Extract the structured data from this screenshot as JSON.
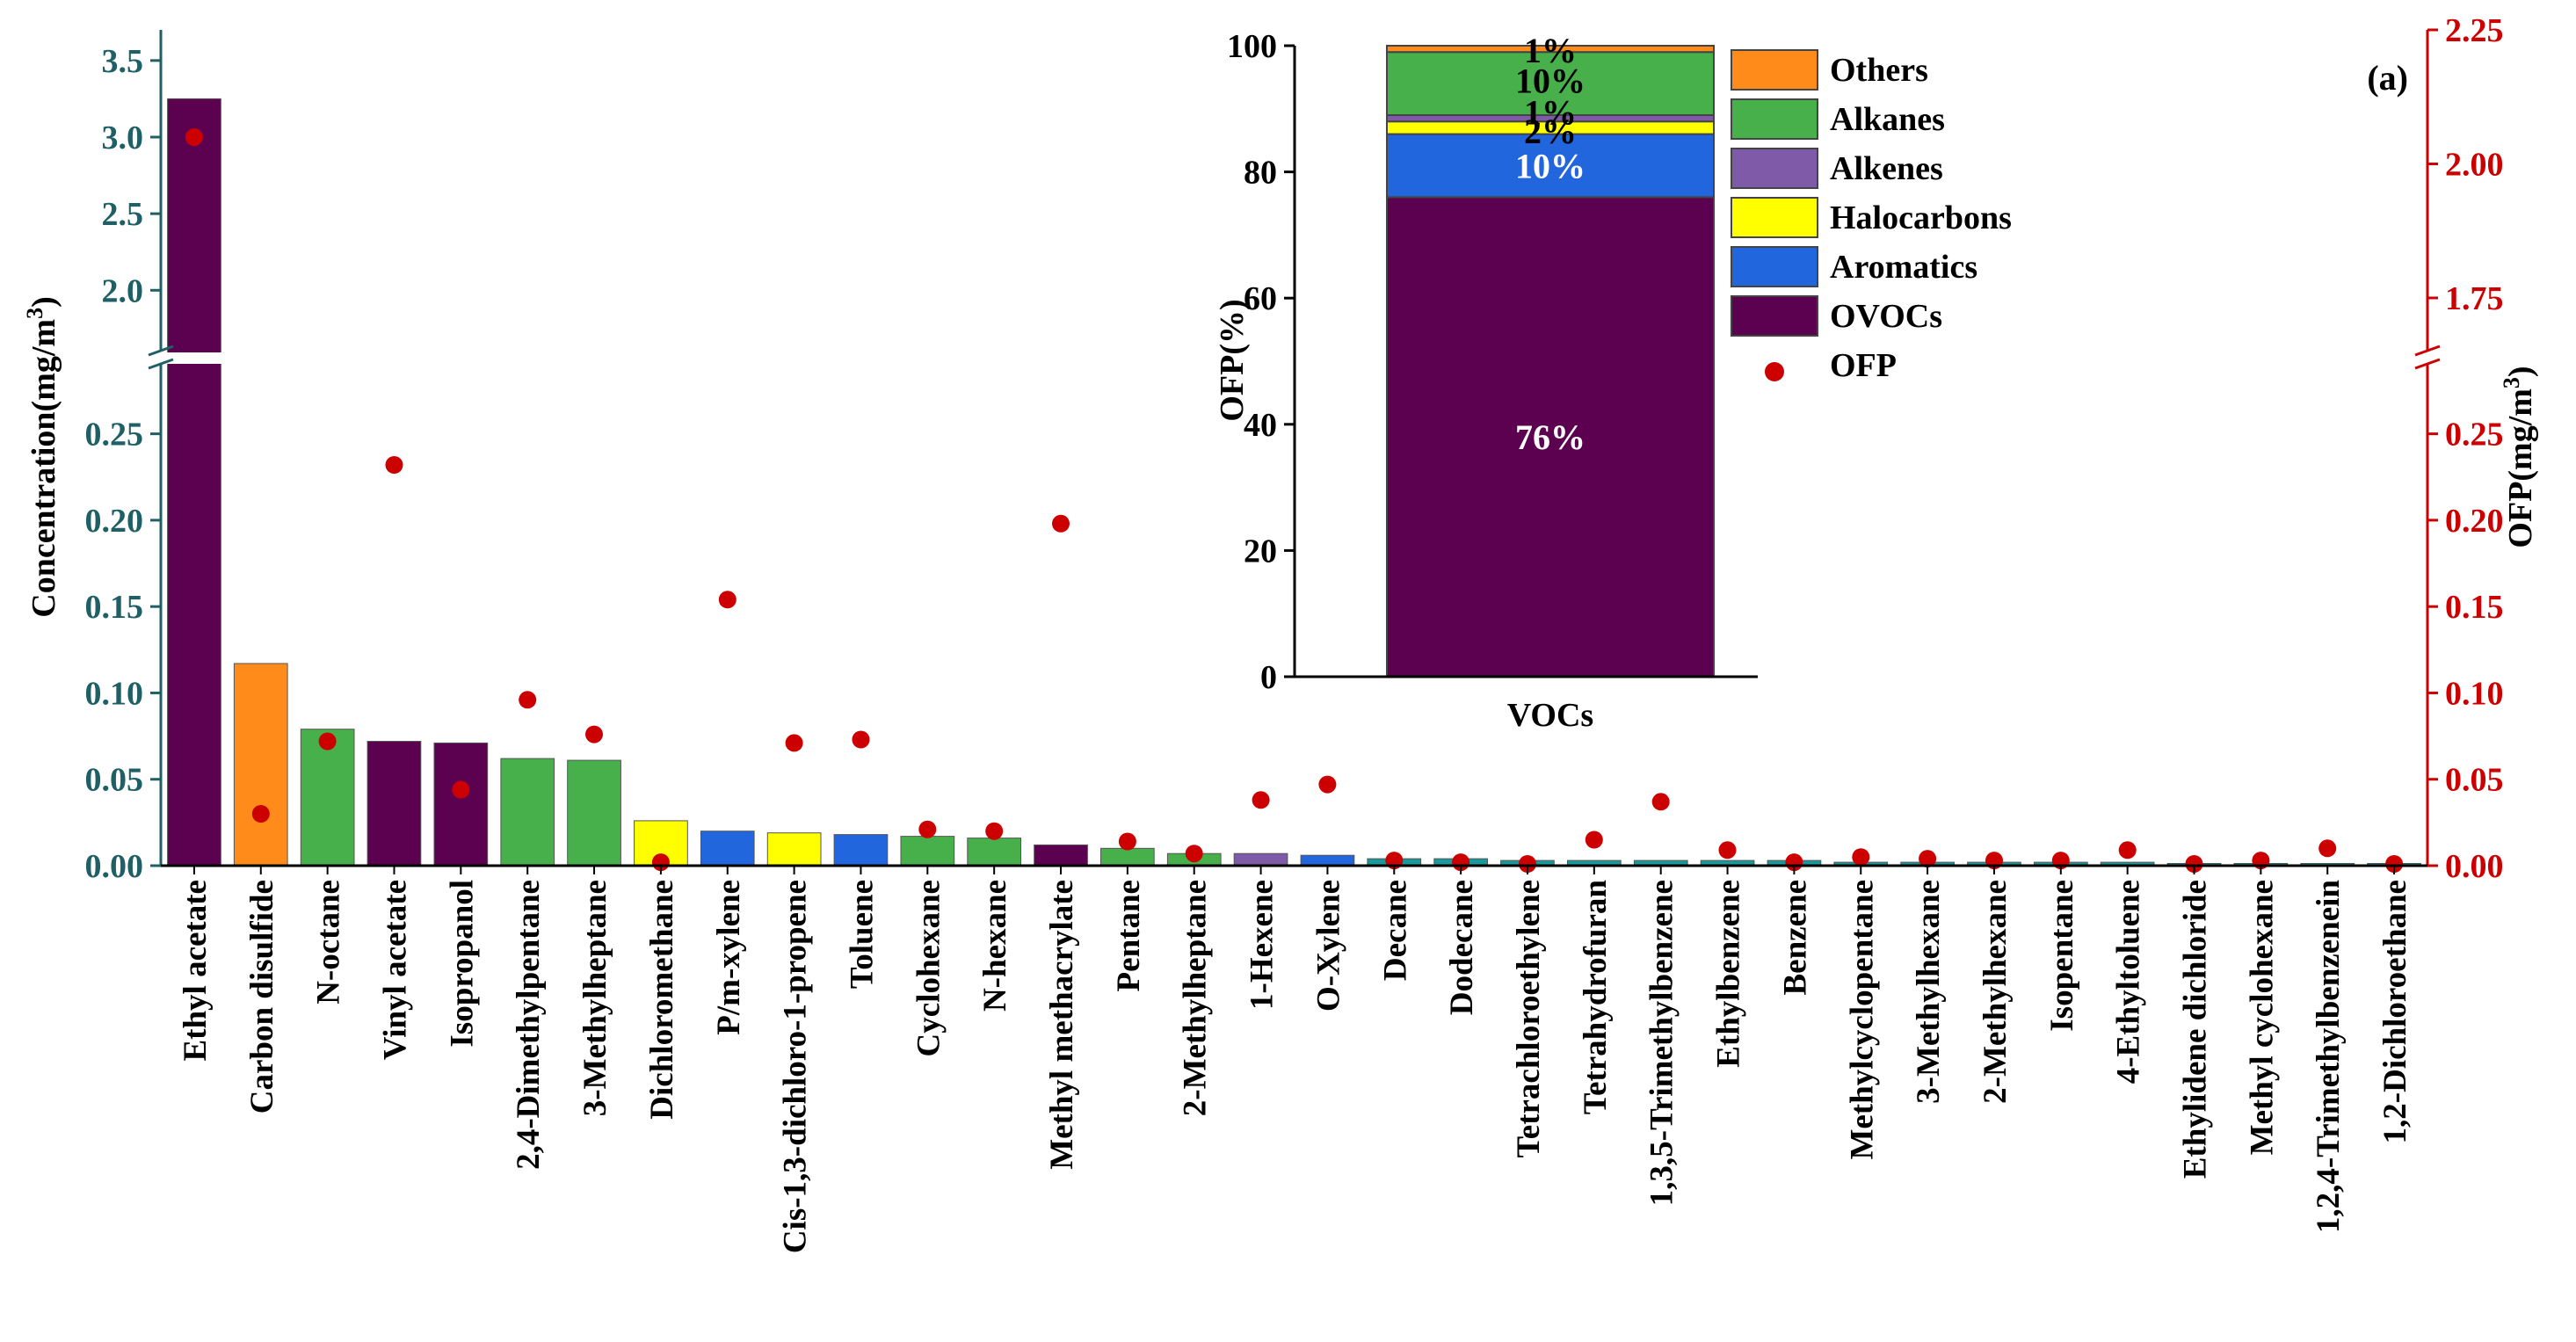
{
  "chart_data": [
    {
      "type": "bar",
      "panel_label": "(a)",
      "categories": [
        "Ethyl acetate",
        "Carbon disulfide",
        "N-octane",
        "Vinyl acetate",
        "Isopropanol",
        "2,4-Dimethylpentane",
        "3-Methylheptane",
        "Dichloromethane",
        "P/m-xylene",
        "Cis-1,3-dichloro-1-propene",
        "Toluene",
        "Cyclohexane",
        "N-hexane",
        "Methyl methacrylate",
        "Pentane",
        "2-Methylheptane",
        "1-Hexene",
        "O-Xylene",
        "Decane",
        "Dodecane",
        "Tetrachloroethylene",
        "Tetrahydrofuran",
        "1,3,5-Trimethylbenzene",
        "Ethylbenzene",
        "Benzene",
        "Methylcyclopentane",
        "3-Methylhexane",
        "2-Methylhexane",
        "Isopentane",
        "4-Ethyltoluene",
        "Ethylidene dichloride",
        "Methyl cyclohexane",
        "1,2,4-Trimethylbenzenein",
        "1,2-Dichloroethane"
      ],
      "groups": [
        "OVOCs",
        "Others",
        "Alkanes",
        "OVOCs",
        "OVOCs",
        "Alkanes",
        "Alkanes",
        "Halocarbons",
        "Aromatics",
        "Halocarbons",
        "Aromatics",
        "Alkanes",
        "Alkanes",
        "OVOCs",
        "Alkanes",
        "Alkanes",
        "Alkenes",
        "Aromatics",
        "Alkanes",
        "Alkanes",
        "Halocarbons",
        "OVOCs",
        "Aromatics",
        "Aromatics",
        "Aromatics",
        "Alkanes",
        "Alkanes",
        "Alkanes",
        "Alkanes",
        "Aromatics",
        "Halocarbons",
        "Alkanes",
        "Aromatics",
        "Halocarbons"
      ],
      "series": [
        {
          "name": "Concentration",
          "axis": "left",
          "values": [
            3.25,
            0.117,
            0.079,
            0.072,
            0.071,
            0.062,
            0.061,
            0.026,
            0.02,
            0.019,
            0.018,
            0.017,
            0.016,
            0.012,
            0.01,
            0.007,
            0.007,
            0.006,
            0.004,
            0.004,
            0.003,
            0.003,
            0.003,
            0.003,
            0.003,
            0.002,
            0.002,
            0.002,
            0.002,
            0.002,
            0.001,
            0.001,
            0.001,
            0.001
          ]
        },
        {
          "name": "OFP",
          "axis": "right",
          "values": [
            2.05,
            0.03,
            0.072,
            0.232,
            0.044,
            0.096,
            0.076,
            0.002,
            0.154,
            0.071,
            0.073,
            0.021,
            0.02,
            0.198,
            0.014,
            0.007,
            0.038,
            0.047,
            0.003,
            0.002,
            0.001,
            0.015,
            0.037,
            0.009,
            0.002,
            0.005,
            0.004,
            0.003,
            0.003,
            0.009,
            0.001,
            0.003,
            0.01,
            0.001
          ]
        }
      ],
      "ylabel": "Concentration(mg/m",
      "ylabel_sup": "3",
      "ylabel_close": ")",
      "y2label": "OFP(mg/m",
      "y2label_sup": "3",
      "y2label_close": ")",
      "ylim_lower": [
        0,
        0.29
      ],
      "ylim_upper": [
        1.6,
        3.7
      ],
      "y2lim_lower": [
        0,
        0.29
      ],
      "y2lim_upper": [
        1.65,
        2.25
      ],
      "yticks_lower": [
        "0.00",
        "0.05",
        "0.10",
        "0.15",
        "0.20",
        "0.25"
      ],
      "yticks_upper": [
        "2.0",
        "2.5",
        "3.0",
        "3.5"
      ],
      "y2ticks_lower": [
        "0.00",
        "0.05",
        "0.10",
        "0.15",
        "0.20",
        "0.25"
      ],
      "y2ticks_upper": [
        "1.75",
        "2.00",
        "2.25"
      ],
      "axis_break": true
    },
    {
      "type": "stacked_bar",
      "category": "VOCs",
      "ylabel": "OFP(%)",
      "ylim": [
        0,
        100
      ],
      "yticks": [
        "0",
        "20",
        "40",
        "60",
        "80",
        "100"
      ],
      "segments": [
        {
          "name": "OVOCs",
          "value": 76,
          "label": "76%"
        },
        {
          "name": "Aromatics",
          "value": 10,
          "label": "10%"
        },
        {
          "name": "Halocarbons",
          "value": 2,
          "label": "2%"
        },
        {
          "name": "Alkenes",
          "value": 1,
          "label": "1%"
        },
        {
          "name": "Alkanes",
          "value": 10,
          "label": "10%"
        },
        {
          "name": "Others",
          "value": 1,
          "label": "1%"
        }
      ]
    }
  ],
  "legend": {
    "placement": "top-right",
    "items": [
      {
        "name": "Others",
        "label": "Others",
        "kind": "box"
      },
      {
        "name": "Alkanes",
        "label": "Alkanes",
        "kind": "box"
      },
      {
        "name": "Alkenes",
        "label": "Alkenes",
        "kind": "box"
      },
      {
        "name": "Halocarbons",
        "label": "Halocarbons",
        "kind": "box"
      },
      {
        "name": "Aromatics",
        "label": "Aromatics",
        "kind": "box"
      },
      {
        "name": "OVOCs",
        "label": "OVOCs",
        "kind": "box"
      },
      {
        "name": "OFP",
        "label": "OFP",
        "kind": "dot"
      }
    ]
  },
  "colors": {
    "OVOCs": "#5c0050",
    "Aromatics": "#2266dd",
    "Halocarbons": "#ffff00",
    "Alkenes": "#7e5aa8",
    "Alkanes": "#47b04b",
    "Others": "#ff8c1a",
    "OFP": "#cc0000",
    "left_axis": "#1f5f66",
    "right_axis": "#cc0000",
    "tiny_bar": "#1a9a9a"
  }
}
